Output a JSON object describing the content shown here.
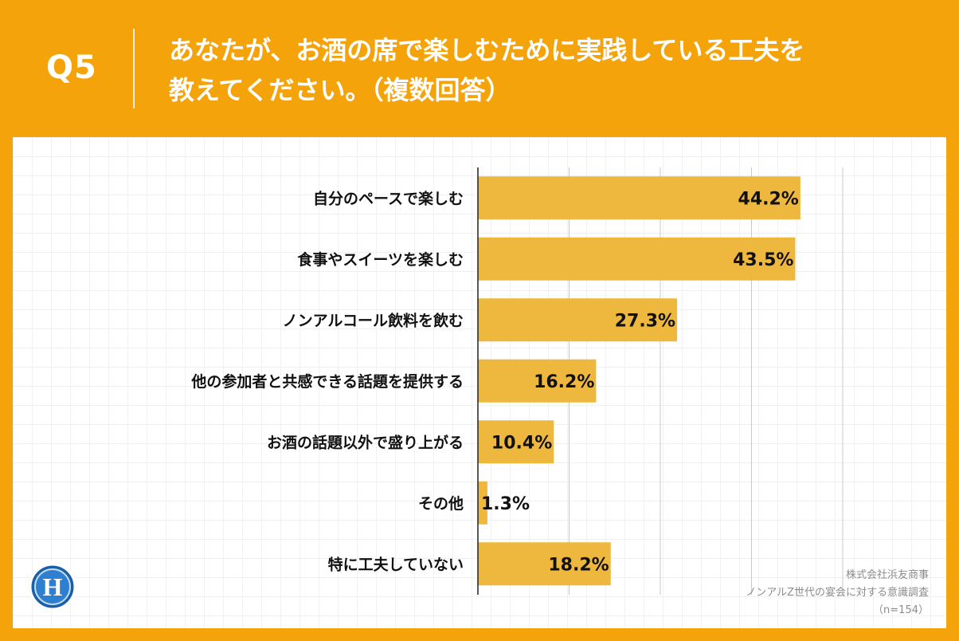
{
  "header": {
    "question_number": "Q5",
    "title_line1": "あなたが、お酒の席で楽しむために実践している工夫を",
    "title_line2": "教えてください。（複数回答）"
  },
  "chart_data": {
    "type": "bar",
    "orientation": "horizontal",
    "categories": [
      "自分のペースで楽しむ",
      "食事やスイーツを楽しむ",
      "ノンアルコール飲料を飲む",
      "他の参加者と共感できる話題を提供する",
      "お酒の話題以外で盛り上がる",
      "その他",
      "特に工夫していない"
    ],
    "values": [
      44.2,
      43.5,
      27.3,
      16.2,
      10.4,
      1.3,
      18.2
    ],
    "value_labels": [
      "44.2%",
      "43.5%",
      "27.3%",
      "16.2%",
      "10.4%",
      "1.3%",
      "18.2%"
    ],
    "xlim": [
      0,
      50
    ],
    "grid": true,
    "bar_color": "#EDB83D"
  },
  "footer": {
    "company": "株式会社浜友商事",
    "survey": "ノンアルZ世代の宴会に対する意識調査",
    "sample": "（n=154）"
  },
  "logo": {
    "icon": "h-logo-icon",
    "letter": "H"
  },
  "colors": {
    "background": "#F5A30A",
    "panel": "#FFFFFF",
    "bar": "#EDB83D",
    "grid": "#C8C8C8",
    "axis": "#222222"
  }
}
